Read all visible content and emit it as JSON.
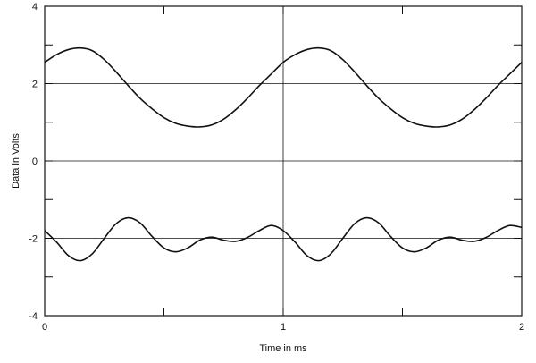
{
  "chart_data": {
    "type": "line",
    "title": "",
    "xlabel": "Time in ms",
    "ylabel": "Data in Volts",
    "xlim": [
      0,
      2
    ],
    "ylim": [
      -4,
      4
    ],
    "x_ticks": [
      "0",
      "1",
      "2"
    ],
    "x_tick_values": [
      0,
      1,
      2
    ],
    "y_ticks": [
      "4",
      "2",
      "0",
      "-2",
      "-4"
    ],
    "y_tick_values": [
      4,
      2,
      0,
      -2,
      -4
    ],
    "grid": true,
    "line_color": "#111111",
    "series": [
      {
        "values": [
          [
            0.0,
            2.55
          ],
          [
            0.05,
            2.75
          ],
          [
            0.1,
            2.88
          ],
          [
            0.15,
            2.92
          ],
          [
            0.2,
            2.85
          ],
          [
            0.25,
            2.62
          ],
          [
            0.3,
            2.3
          ],
          [
            0.35,
            1.95
          ],
          [
            0.4,
            1.62
          ],
          [
            0.45,
            1.35
          ],
          [
            0.5,
            1.12
          ],
          [
            0.55,
            0.97
          ],
          [
            0.6,
            0.9
          ],
          [
            0.65,
            0.88
          ],
          [
            0.7,
            0.93
          ],
          [
            0.75,
            1.08
          ],
          [
            0.8,
            1.32
          ],
          [
            0.85,
            1.62
          ],
          [
            0.9,
            1.95
          ],
          [
            0.95,
            2.25
          ],
          [
            1.0,
            2.55
          ],
          [
            1.05,
            2.75
          ],
          [
            1.1,
            2.88
          ],
          [
            1.15,
            2.92
          ],
          [
            1.2,
            2.85
          ],
          [
            1.25,
            2.62
          ],
          [
            1.3,
            2.3
          ],
          [
            1.35,
            1.95
          ],
          [
            1.4,
            1.62
          ],
          [
            1.45,
            1.35
          ],
          [
            1.5,
            1.12
          ],
          [
            1.55,
            0.97
          ],
          [
            1.6,
            0.9
          ],
          [
            1.65,
            0.88
          ],
          [
            1.7,
            0.93
          ],
          [
            1.75,
            1.08
          ],
          [
            1.8,
            1.32
          ],
          [
            1.85,
            1.62
          ],
          [
            1.9,
            1.95
          ],
          [
            1.95,
            2.25
          ],
          [
            2.0,
            2.55
          ]
        ]
      },
      {
        "values": [
          [
            0.0,
            -1.8
          ],
          [
            0.05,
            -2.1
          ],
          [
            0.1,
            -2.45
          ],
          [
            0.15,
            -2.58
          ],
          [
            0.2,
            -2.4
          ],
          [
            0.25,
            -2.0
          ],
          [
            0.3,
            -1.62
          ],
          [
            0.35,
            -1.47
          ],
          [
            0.4,
            -1.6
          ],
          [
            0.45,
            -1.95
          ],
          [
            0.5,
            -2.25
          ],
          [
            0.55,
            -2.35
          ],
          [
            0.6,
            -2.25
          ],
          [
            0.65,
            -2.05
          ],
          [
            0.7,
            -1.97
          ],
          [
            0.75,
            -2.05
          ],
          [
            0.8,
            -2.08
          ],
          [
            0.85,
            -1.98
          ],
          [
            0.9,
            -1.8
          ],
          [
            0.95,
            -1.67
          ],
          [
            1.0,
            -1.8
          ],
          [
            1.05,
            -2.1
          ],
          [
            1.1,
            -2.45
          ],
          [
            1.15,
            -2.58
          ],
          [
            1.2,
            -2.4
          ],
          [
            1.25,
            -2.0
          ],
          [
            1.3,
            -1.62
          ],
          [
            1.35,
            -1.47
          ],
          [
            1.4,
            -1.6
          ],
          [
            1.45,
            -1.95
          ],
          [
            1.5,
            -2.25
          ],
          [
            1.55,
            -2.35
          ],
          [
            1.6,
            -2.25
          ],
          [
            1.65,
            -2.05
          ],
          [
            1.7,
            -1.97
          ],
          [
            1.75,
            -2.05
          ],
          [
            1.8,
            -2.08
          ],
          [
            1.85,
            -1.98
          ],
          [
            1.9,
            -1.8
          ],
          [
            1.95,
            -1.67
          ],
          [
            2.0,
            -1.72
          ]
        ]
      }
    ]
  }
}
